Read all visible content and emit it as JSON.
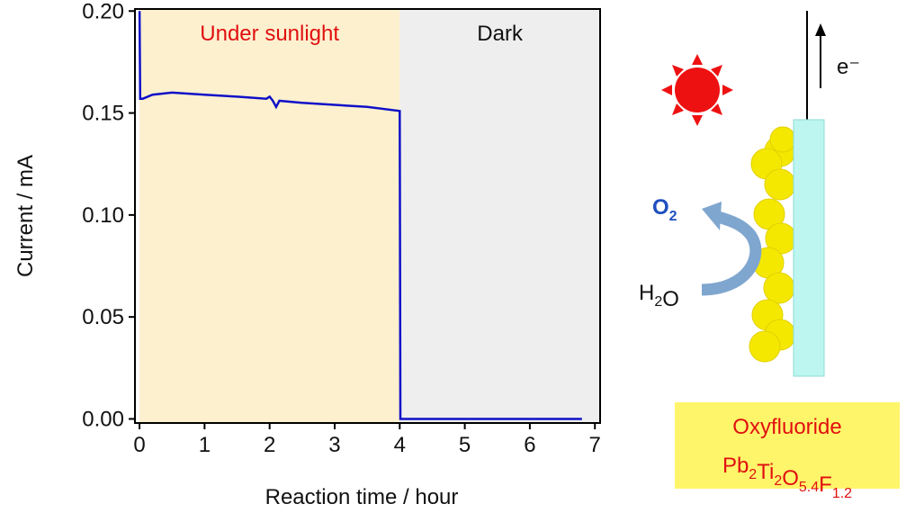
{
  "chart_data": {
    "type": "line",
    "x_label": "Reaction time / hour",
    "y_label": "Current / mA",
    "x": [
      0,
      0.01,
      0.05,
      0.2,
      0.5,
      1,
      1.5,
      1.95,
      2.0,
      2.05,
      2.1,
      2.15,
      2.5,
      3,
      3.5,
      4.0,
      4.01,
      5,
      6,
      6.8
    ],
    "values": [
      0.2,
      0.157,
      0.157,
      0.159,
      0.16,
      0.159,
      0.158,
      0.157,
      0.158,
      0.156,
      0.153,
      0.156,
      0.155,
      0.154,
      0.153,
      0.151,
      0,
      0,
      0,
      0
    ],
    "color": "#1010c8",
    "regions": [
      {
        "label": "Under sunlight",
        "start": 0,
        "end": 4,
        "color": "#fdf0cf",
        "label_color": "#e01010"
      },
      {
        "label": "Dark",
        "start": 4,
        "end": 7.08,
        "color": "#eeeeee",
        "label_color": "#111111"
      }
    ],
    "xlim": [
      -0.07,
      7.08
    ],
    "ylim": [
      -0.002,
      0.201
    ],
    "xticks": [
      0,
      1,
      2,
      3,
      4,
      5,
      6,
      7
    ],
    "yticks": [
      {
        "value": 0,
        "label": "0.00"
      },
      {
        "value": 0.05,
        "label": "0.05"
      },
      {
        "value": 0.1,
        "label": "0.10"
      },
      {
        "value": 0.15,
        "label": "0.15"
      },
      {
        "value": 0.2,
        "label": "0.20"
      }
    ]
  },
  "diagram": {
    "electron": "e⁻",
    "product": [
      {
        "text": "O",
        "sub": "2"
      }
    ],
    "reactant": [
      {
        "text": "H",
        "sub": "2"
      },
      {
        "text": "O"
      }
    ],
    "material_name": "Oxyfluoride",
    "formula": [
      {
        "text": "Pb",
        "sub": "2"
      },
      {
        "text": "Ti",
        "sub": "2"
      },
      {
        "text": "O",
        "sub": "5.4"
      },
      {
        "text": "F",
        "sub": "1.2"
      }
    ]
  }
}
